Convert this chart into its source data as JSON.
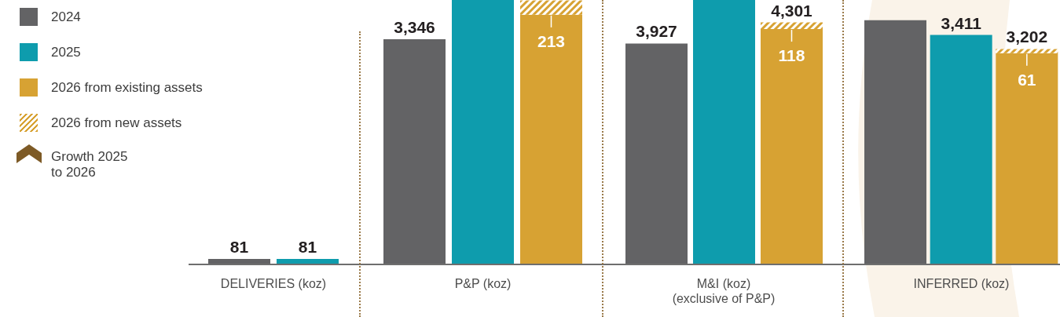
{
  "chart_data": [
    {
      "type": "bar",
      "stacked": true,
      "legend": "left",
      "tick_labels": false,
      "xlabel": "DELIVERIES (koz)",
      "categories": [
        null,
        null
      ],
      "ylim": [
        0,
        3930
      ],
      "series": [
        {
          "name": "2024",
          "color": "#636365",
          "values": [
            81,
            null
          ],
          "value_labels": [
            "81",
            null
          ]
        },
        {
          "name": "2025",
          "color": "#0e9cad",
          "values": [
            null,
            81
          ],
          "value_labels": [
            null,
            "81"
          ]
        },
        {
          "name": "2026 from existing assets",
          "color": "#d7a233",
          "values": [
            null,
            null
          ]
        },
        {
          "name": "2026 from new assets",
          "color": "#d7a233",
          "values": [
            null,
            null
          ]
        }
      ],
      "annotations": [
        "Growth 2025 to 2026"
      ]
    },
    {
      "type": "bar",
      "stacked": true,
      "tick_labels": false,
      "xlabel": "P&P (koz)",
      "categories": [
        null,
        null,
        null
      ],
      "ylim": [
        0,
        3930
      ],
      "series": [
        {
          "color": "#636365",
          "values": [
            3346,
            null,
            null
          ],
          "value_labels": [
            "3,346",
            null,
            null
          ]
        },
        {
          "color": "#0e9cad",
          "values": [
            null,
            3930,
            null
          ]
        },
        {
          "color": "#d7a233",
          "values": [
            null,
            null,
            3710
          ]
        },
        {
          "color": "#d7a233",
          "values": [
            null,
            null,
            213
          ],
          "value_labels": [
            null,
            null,
            "213"
          ]
        }
      ]
    },
    {
      "type": "bar",
      "stacked": true,
      "tick_labels": false,
      "xlabel": "M&I (koz)\n(exclusive of P&P)",
      "categories": [
        null,
        null,
        null
      ],
      "ylim": [
        0,
        4700
      ],
      "series": [
        {
          "color": "#636365",
          "values": [
            3927,
            null,
            null
          ],
          "value_labels": [
            "3,927",
            null,
            null
          ]
        },
        {
          "color": "#0e9cad",
          "values": [
            null,
            4700,
            null
          ]
        },
        {
          "color": "#d7a233",
          "values": [
            null,
            null,
            4183
          ]
        },
        {
          "color": "#d7a233",
          "values": [
            null,
            null,
            118
          ],
          "value_labels": [
            null,
            null,
            "118"
          ]
        }
      ],
      "totals": [
        null,
        null,
        "4,301"
      ]
    },
    {
      "type": "bar",
      "stacked": true,
      "tick_labels": false,
      "xlabel": "INFERRED (koz)",
      "categories": [
        null,
        null,
        null
      ],
      "ylim": [
        0,
        3930
      ],
      "series": [
        {
          "color": "#636365",
          "values": [
            3630,
            null,
            null
          ]
        },
        {
          "color": "#0e9cad",
          "values": [
            null,
            3411,
            null
          ],
          "value_labels": [
            null,
            "3,411",
            null
          ]
        },
        {
          "color": "#d7a233",
          "values": [
            null,
            null,
            3141
          ]
        },
        {
          "color": "#d7a233",
          "values": [
            null,
            null,
            61
          ],
          "value_labels": [
            null,
            null,
            "61"
          ]
        }
      ],
      "totals": [
        null,
        null,
        "3,202"
      ]
    }
  ]
}
